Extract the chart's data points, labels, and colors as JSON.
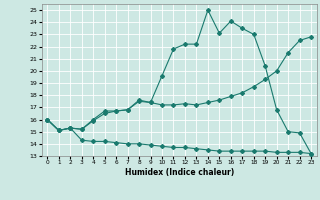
{
  "title": "",
  "xlabel": "Humidex (Indice chaleur)",
  "xlim": [
    -0.5,
    23.5
  ],
  "ylim": [
    13,
    25.5
  ],
  "yticks": [
    13,
    14,
    15,
    16,
    17,
    18,
    19,
    20,
    21,
    22,
    23,
    24,
    25
  ],
  "xticks": [
    0,
    1,
    2,
    3,
    4,
    5,
    6,
    7,
    8,
    9,
    10,
    11,
    12,
    13,
    14,
    15,
    16,
    17,
    18,
    19,
    20,
    21,
    22,
    23
  ],
  "bg_color": "#cde8e3",
  "grid_color": "#ffffff",
  "line_color": "#1a7a6e",
  "line1_x": [
    0,
    1,
    2,
    3,
    4,
    5,
    6,
    7,
    8,
    9,
    10,
    11,
    12,
    13,
    14,
    15,
    16,
    17,
    18,
    19,
    20,
    21,
    22,
    23
  ],
  "line1_y": [
    16.0,
    15.1,
    15.3,
    14.3,
    14.2,
    14.2,
    14.1,
    14.0,
    14.0,
    13.9,
    13.8,
    13.7,
    13.7,
    13.6,
    13.5,
    13.4,
    13.4,
    13.4,
    13.4,
    13.4,
    13.3,
    13.3,
    13.3,
    13.2
  ],
  "line2_x": [
    0,
    1,
    2,
    3,
    4,
    5,
    6,
    7,
    8,
    9,
    10,
    11,
    12,
    13,
    14,
    15,
    16,
    17,
    18,
    19,
    20,
    21,
    22,
    23
  ],
  "line2_y": [
    16.0,
    15.1,
    15.3,
    15.2,
    15.9,
    16.5,
    16.7,
    16.8,
    17.5,
    17.4,
    17.2,
    17.2,
    17.3,
    17.2,
    17.4,
    17.6,
    17.9,
    18.2,
    18.7,
    19.3,
    20.0,
    21.5,
    22.5,
    22.8
  ],
  "line3_x": [
    0,
    1,
    2,
    3,
    4,
    5,
    6,
    7,
    8,
    9,
    10,
    11,
    12,
    13,
    14,
    15,
    16,
    17,
    18,
    19,
    20,
    21,
    22,
    23
  ],
  "line3_y": [
    16.0,
    15.1,
    15.3,
    15.2,
    16.0,
    16.7,
    16.7,
    16.8,
    17.6,
    17.4,
    19.6,
    21.8,
    22.2,
    22.2,
    25.0,
    23.1,
    24.1,
    23.5,
    23.0,
    20.4,
    16.8,
    15.0,
    14.9,
    13.2
  ],
  "marker": "D",
  "markersize": 2.0,
  "linewidth": 0.8
}
